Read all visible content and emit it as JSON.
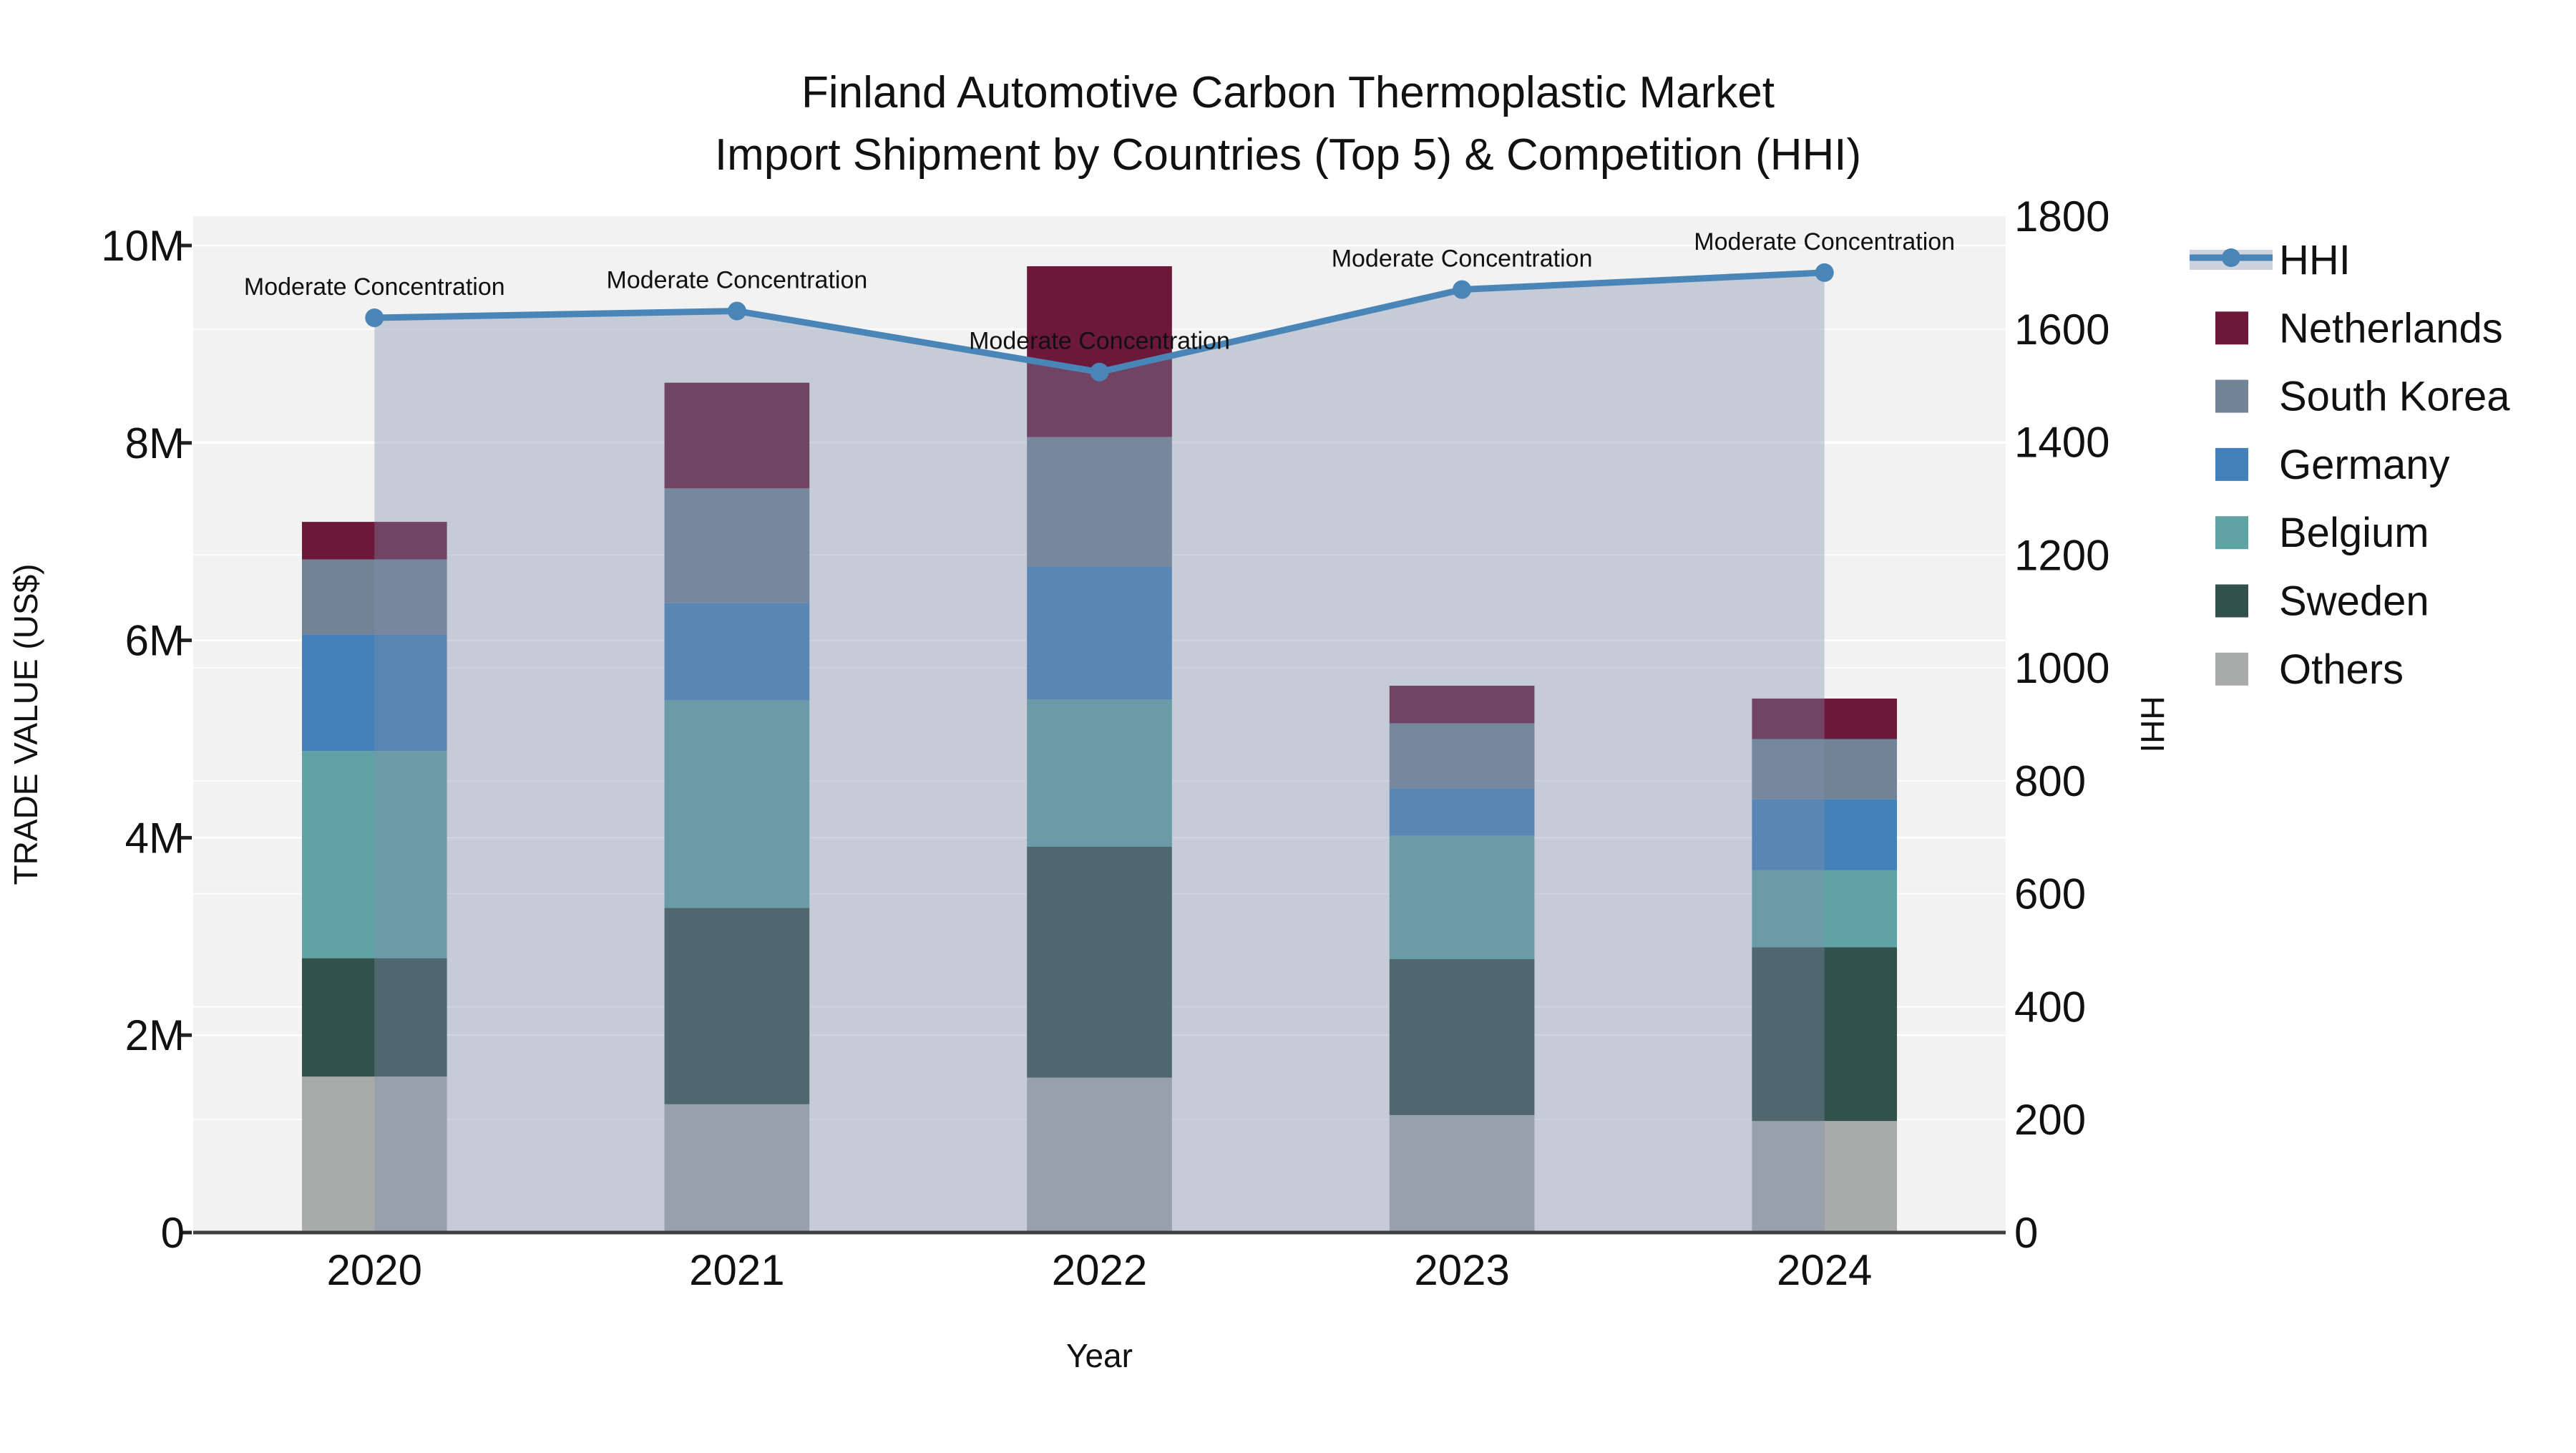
{
  "title": {
    "line1": "Finland Automotive Carbon Thermoplastic Market",
    "line2": "Import Shipment by Countries (Top 5) & Competition (HHI)"
  },
  "axes": {
    "left": {
      "title": "TRADE VALUE (US$)",
      "tick_labels": [
        "0",
        "2M",
        "4M",
        "6M",
        "8M",
        "10M"
      ],
      "tick_values": [
        0,
        2000000,
        4000000,
        6000000,
        8000000,
        10000000
      ]
    },
    "right": {
      "title": "HHI",
      "tick_labels": [
        "0",
        "200",
        "400",
        "600",
        "800",
        "1000",
        "1200",
        "1400",
        "1600",
        "1800"
      ],
      "tick_values": [
        0,
        200,
        400,
        600,
        800,
        1000,
        1200,
        1400,
        1600,
        1800
      ],
      "max": 1800
    },
    "x": {
      "title": "Year",
      "categories": [
        "2020",
        "2021",
        "2022",
        "2023",
        "2024"
      ]
    }
  },
  "legend": [
    {
      "label": "HHI",
      "type": "line",
      "color": "#4A85B8",
      "band_color": "#CDD3DE"
    },
    {
      "label": "Netherlands",
      "type": "swatch",
      "color": "#6B1839"
    },
    {
      "label": "South Korea",
      "type": "swatch",
      "color": "#728396"
    },
    {
      "label": "Germany",
      "type": "swatch",
      "color": "#4581B9"
    },
    {
      "label": "Belgium",
      "type": "swatch",
      "color": "#60A3A4"
    },
    {
      "label": "Sweden",
      "type": "swatch",
      "color": "#33514B"
    },
    {
      "label": "Others",
      "type": "swatch",
      "color": "#A9ABAB"
    }
  ],
  "chart_data": {
    "type": "bar",
    "subtype": "stacked-bars-with-line-overlay",
    "categories": [
      "2020",
      "2021",
      "2022",
      "2023",
      "2024"
    ],
    "series": [
      {
        "name": "Others",
        "color": "#A9ABAB",
        "values": [
          1580000,
          1300000,
          1570000,
          1190000,
          1130000
        ]
      },
      {
        "name": "Sweden",
        "color": "#33514B",
        "values": [
          1200000,
          1990000,
          2340000,
          1580000,
          1760000
        ]
      },
      {
        "name": "Belgium",
        "color": "#60A3A4",
        "values": [
          2100000,
          2100000,
          1490000,
          1250000,
          780000
        ]
      },
      {
        "name": "Germany",
        "color": "#4581B9",
        "values": [
          1180000,
          990000,
          1350000,
          480000,
          720000
        ]
      },
      {
        "name": "South Korea",
        "color": "#728396",
        "values": [
          760000,
          1160000,
          1310000,
          660000,
          610000
        ]
      },
      {
        "name": "Netherlands",
        "color": "#6B1839",
        "values": [
          380000,
          1070000,
          1730000,
          380000,
          410000
        ]
      }
    ],
    "bar_totals": [
      7200000,
      8610000,
      9790000,
      5540000,
      5410000
    ],
    "line": {
      "name": "HHI",
      "axis": "right",
      "color": "#4A85B8",
      "fill_color": "rgba(125,143,172,0.38)",
      "values": [
        1620,
        1632,
        1524,
        1670,
        1700
      ]
    },
    "annotations": [
      {
        "text": "Moderate Concentration",
        "category": "2020"
      },
      {
        "text": "Moderate Concentration",
        "category": "2021"
      },
      {
        "text": "Moderate Concentration",
        "category": "2022"
      },
      {
        "text": "Moderate Concentration",
        "category": "2023"
      },
      {
        "text": "Moderate Concentration",
        "category": "2024"
      }
    ],
    "title": "Finland Automotive Carbon Thermoplastic Market Import Shipment by Countries (Top 5) & Competition (HHI)",
    "xlabel": "Year",
    "ylabel_left": "TRADE VALUE (US$)",
    "ylabel_right": "HHI",
    "ylim_left": [
      0,
      10300000
    ],
    "ylim_right": [
      0,
      1800
    ],
    "grid": true,
    "legend_position": "right"
  },
  "colors": {
    "plot_background": "#F2F2F2",
    "paper_background": "#FFFFFF",
    "gridline": "#FFFFFF",
    "axis_line": "#3F3F3F",
    "text": "#111111"
  }
}
